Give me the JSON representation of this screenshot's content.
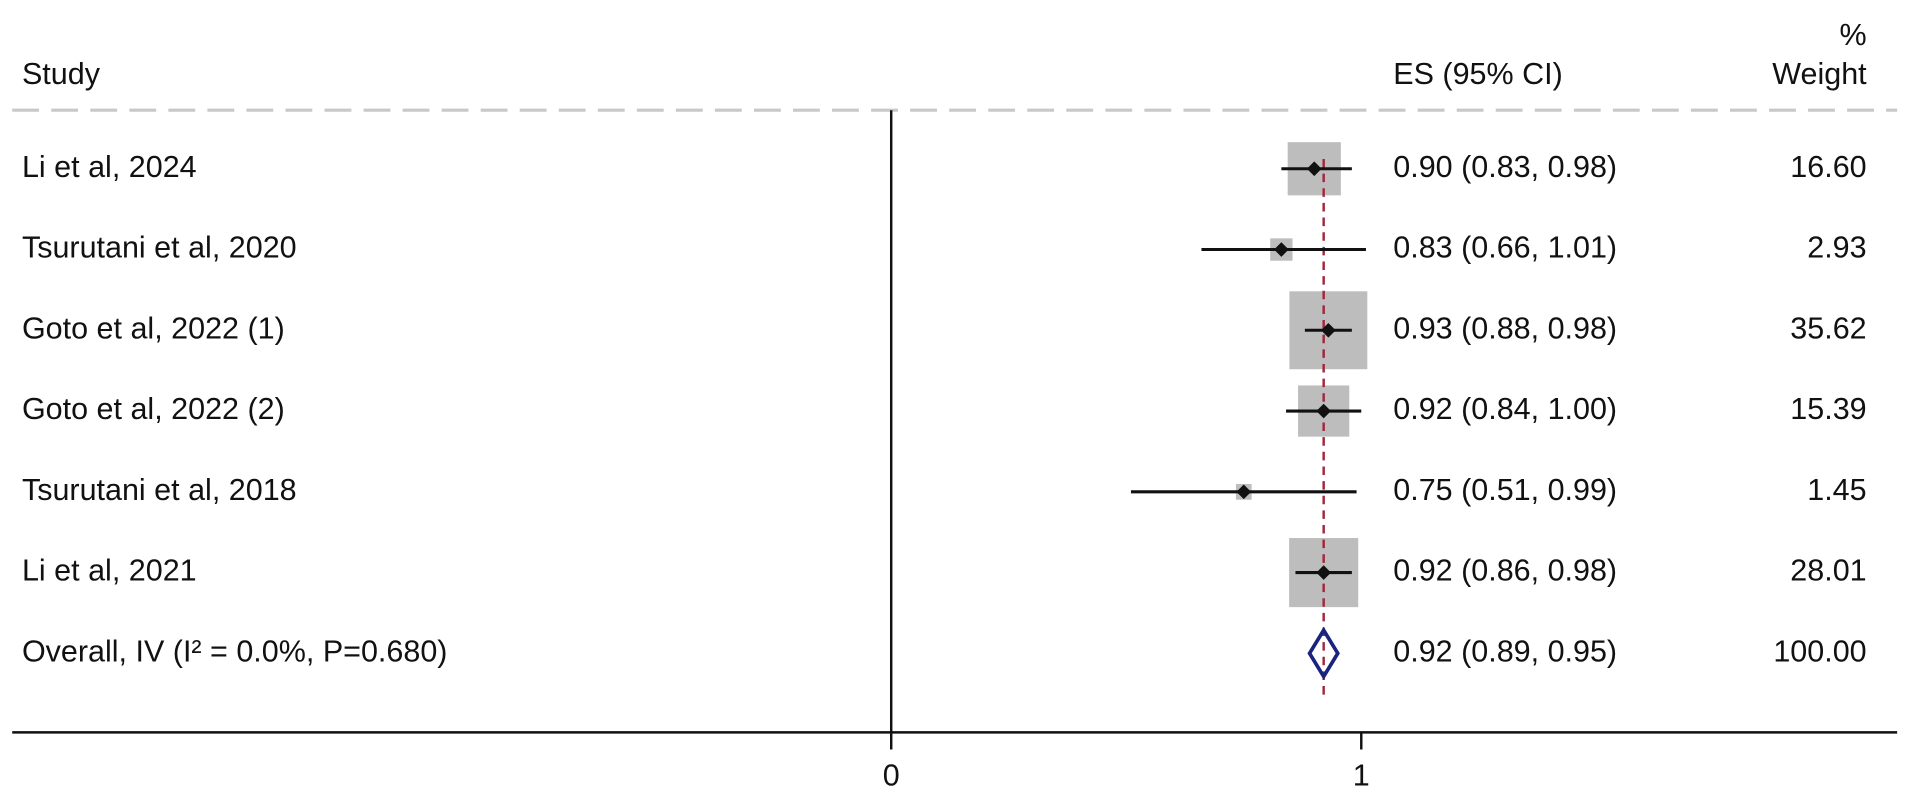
{
  "chart_data": {
    "type": "forest",
    "headers": {
      "study": "Study",
      "es": "ES (95% CI)",
      "weight_top": "%",
      "weight": "Weight"
    },
    "categories": [
      "Li et al, 2024",
      "Tsurutani et al, 2020",
      "Goto et al, 2022 (1)",
      "Goto et al, 2022 (2)",
      "Tsurutani et al, 2018",
      "Li et al, 2021"
    ],
    "values": [
      0.9,
      0.83,
      0.93,
      0.92,
      0.75,
      0.92
    ],
    "lower": [
      0.83,
      0.66,
      0.88,
      0.84,
      0.51,
      0.86
    ],
    "upper": [
      0.98,
      1.01,
      0.98,
      1.0,
      0.99,
      0.98
    ],
    "value_labels": [
      "0.90 (0.83, 0.98)",
      "0.83 (0.66, 1.01)",
      "0.93 (0.88, 0.98)",
      "0.92 (0.84, 1.00)",
      "0.75 (0.51, 0.99)",
      "0.92 (0.86, 0.98)"
    ],
    "weights": [
      16.6,
      2.93,
      35.62,
      15.39,
      1.45,
      28.01
    ],
    "weight_labels": [
      "16.60",
      "2.93",
      "35.62",
      "15.39",
      "1.45",
      "28.01"
    ],
    "overall": {
      "label": "Overall, IV (I² = 0.0%, P=0.680)",
      "value": 0.92,
      "lower": 0.89,
      "upper": 0.95,
      "value_label": "0.92 (0.89, 0.95)",
      "weight": 100,
      "weight_label": "100.00"
    },
    "box_color": "#bdbdbd",
    "diamond_color": "#1a237e",
    "overall_line_color": "#a0283c",
    "xlim": [
      -1.87,
      2.14
    ],
    "xticks": [
      0,
      1
    ]
  }
}
